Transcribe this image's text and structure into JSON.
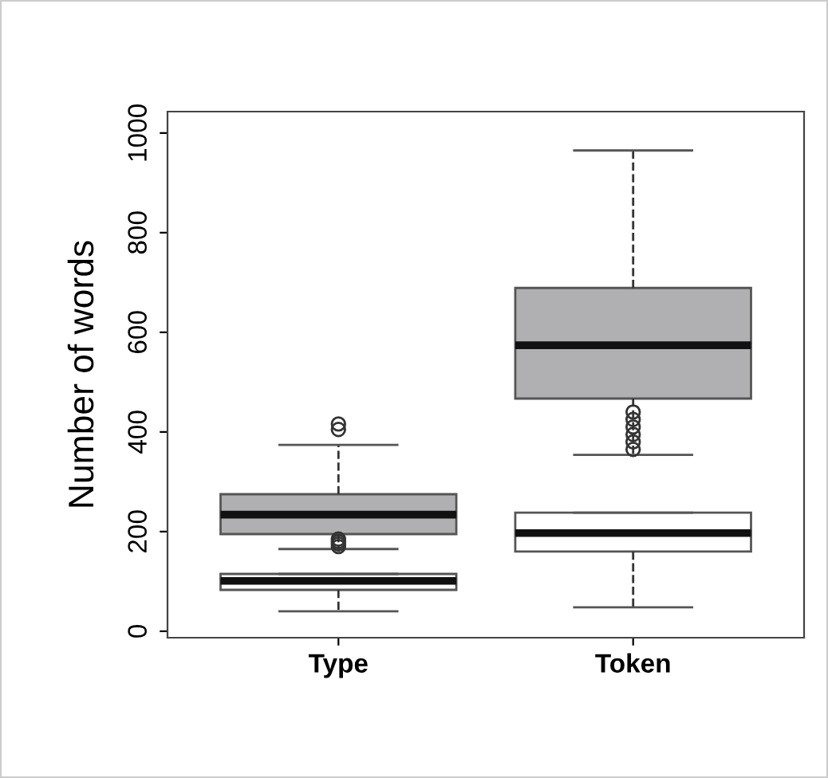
{
  "chart_data": {
    "type": "box",
    "ylabel": "Number of words",
    "categories": [
      "Type",
      "Token"
    ],
    "ylim": [
      -13,
      1043
    ],
    "yticks": [
      0,
      200,
      400,
      600,
      800,
      1000
    ],
    "grid": false,
    "line_style": "dashed",
    "series": [
      {
        "color": "#b0b0b2",
        "boxes": [
          {
            "low": 165,
            "q1": 195,
            "median": 234,
            "q3": 275,
            "high": 374,
            "outliers": [
              170,
              175,
              180,
              185,
              405,
              416
            ]
          },
          {
            "low": 354,
            "q1": 467,
            "median": 574,
            "q3": 689,
            "high": 965,
            "outliers": [
              365,
              380,
              395,
              410,
              425,
              440
            ]
          }
        ]
      },
      {
        "color": "#ffffff",
        "boxes": [
          {
            "low": 40,
            "q1": 83,
            "median": 101,
            "q3": 115,
            "high": 115
          },
          {
            "low": 48,
            "q1": 160,
            "median": 197,
            "q3": 238,
            "high": 238
          }
        ]
      }
    ]
  }
}
